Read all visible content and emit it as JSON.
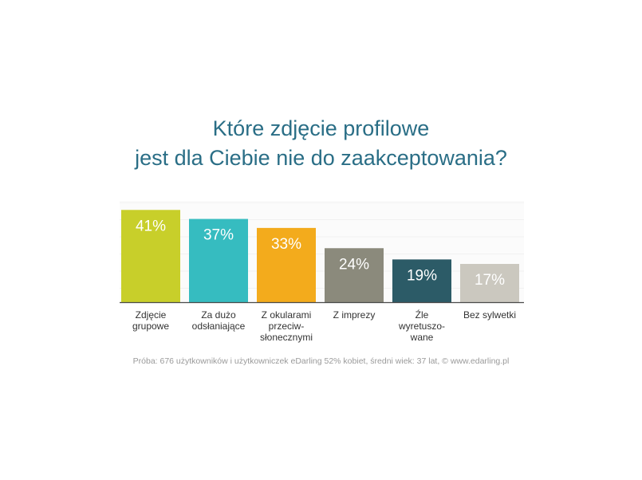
{
  "title_line1": "Które zdjęcie profilowe",
  "title_line2": "jest dla Ciebie nie do zaakceptowania?",
  "footnote": "Próba: 676 użytkowników i użytkowniczek eDarling 52% kobiet, średni wiek: 37 lat, © www.edarling.pl",
  "chart_data": {
    "type": "bar",
    "title": "Które zdjęcie profilowe jest dla Ciebie nie do zaakceptowania?",
    "categories": [
      [
        "Zdjęcie",
        "grupowe"
      ],
      [
        "Za dużo",
        "odsłaniające"
      ],
      [
        "Z okularami",
        "przeciw-",
        "słonecznymi"
      ],
      [
        "Z imprezy"
      ],
      [
        "Źle",
        "wyretuszo-",
        "wane"
      ],
      [
        "Bez sylwetki"
      ]
    ],
    "values": [
      41,
      37,
      33,
      24,
      19,
      17
    ],
    "value_labels": [
      "41%",
      "37%",
      "33%",
      "24%",
      "19%",
      "17%"
    ],
    "colors": [
      "#c8cf2a",
      "#36bcc0",
      "#f3ab1c",
      "#8b8a7c",
      "#2c5b67",
      "#cbc8bf"
    ],
    "label_colors": [
      "#ffffff",
      "#ffffff",
      "#ffffff",
      "#ffffff",
      "#ffffff",
      "#ffffff"
    ],
    "ylim": [
      0,
      45
    ],
    "grid": true,
    "grid_color": "#f0f0f0"
  }
}
